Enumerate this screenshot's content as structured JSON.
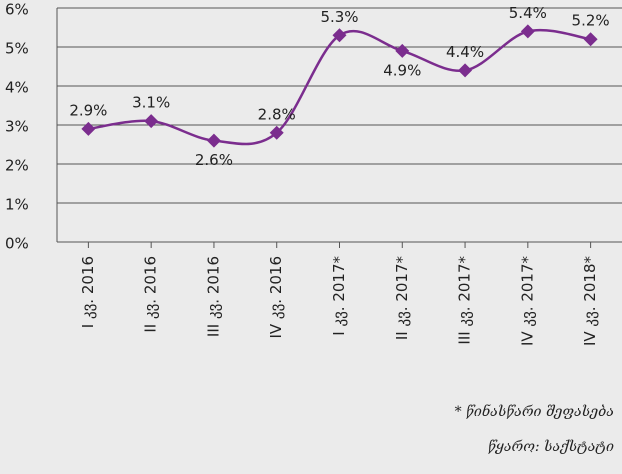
{
  "chart_data": {
    "type": "line",
    "categories": [
      "I კვ. 2016",
      "II კვ. 2016",
      "III კვ. 2016",
      "IV კვ. 2016",
      "I კვ. 2017*",
      "II კვ. 2017*",
      "III კვ. 2017*",
      "IV კვ. 2017*",
      "IV კვ. 2018*"
    ],
    "series": [
      {
        "color": "#7b2d8e",
        "values": [
          2.9,
          3.1,
          2.6,
          2.8,
          5.3,
          4.9,
          4.4,
          5.4,
          5.2
        ],
        "value_labels": [
          "2.9%",
          "3.1%",
          "2.6%",
          "2.8%",
          "5.3%",
          "4.9%",
          "4.4%",
          "5.4%",
          "5.2%"
        ]
      }
    ],
    "ylim": [
      0,
      6
    ],
    "yticks": [
      {
        "value": 0,
        "label": "0%"
      },
      {
        "value": 1,
        "label": "1%"
      },
      {
        "value": 2,
        "label": "2%"
      },
      {
        "value": 3,
        "label": "3%"
      },
      {
        "value": 4,
        "label": "4%"
      },
      {
        "value": 5,
        "label": "5%"
      },
      {
        "value": 6,
        "label": "6%"
      }
    ],
    "grid": true,
    "notes": [
      "* წინასწარი შეფასება",
      "წყარო: საქსტატი"
    ]
  }
}
